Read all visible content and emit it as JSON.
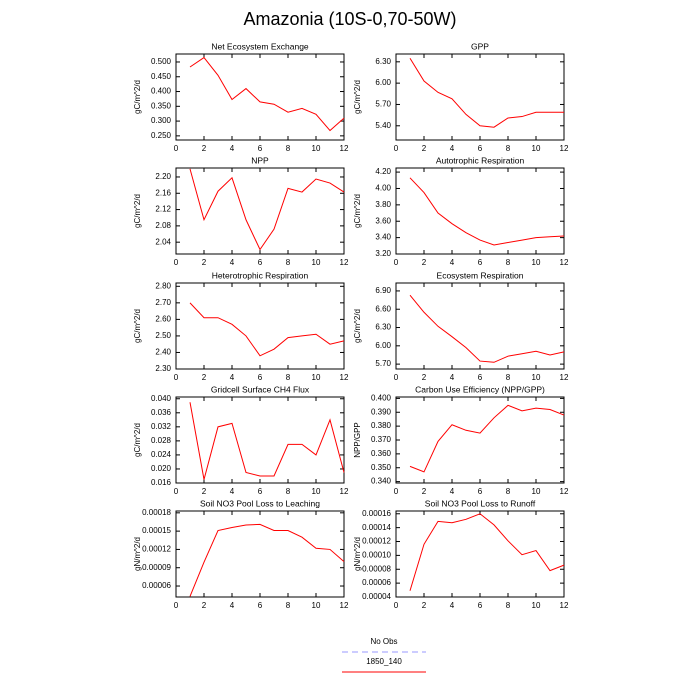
{
  "title": "Amazonia (10S-0,70-50W)",
  "legend": [
    {
      "name": "No Obs",
      "color": "#9999ff"
    },
    {
      "name": "1850_140",
      "color": "#ff0000"
    }
  ],
  "chart_data": [
    {
      "type": "line",
      "title": "Net Ecosystem Exchange",
      "y_label": "gC/m^2/d",
      "color": "#ff0000",
      "x": [
        1,
        2,
        3,
        4,
        5,
        6,
        7,
        8,
        9,
        10,
        11,
        12
      ],
      "values": [
        0.483,
        0.515,
        0.455,
        0.373,
        0.41,
        0.365,
        0.357,
        0.33,
        0.343,
        0.323,
        0.268,
        0.31
      ],
      "xlim": [
        0,
        12
      ],
      "xticks": [
        0,
        2,
        4,
        6,
        8,
        10,
        12
      ],
      "ylim": [
        0.236,
        0.527
      ],
      "yticks": [
        {
          "value": 0.25,
          "label": "0.250"
        },
        {
          "value": 0.3,
          "label": "0.300"
        },
        {
          "value": 0.35,
          "label": "0.350"
        },
        {
          "value": 0.4,
          "label": "0.400"
        },
        {
          "value": 0.45,
          "label": "0.450"
        },
        {
          "value": 0.5,
          "label": "0.500"
        }
      ]
    },
    {
      "type": "line",
      "title": "GPP",
      "y_label": "gC/m^2/d",
      "color": "#ff0000",
      "x": [
        1,
        2,
        3,
        4,
        5,
        6,
        7,
        8,
        9,
        10,
        11,
        12
      ],
      "values": [
        6.35,
        6.03,
        5.87,
        5.78,
        5.56,
        5.4,
        5.38,
        5.51,
        5.53,
        5.59,
        5.59,
        5.59
      ],
      "xlim": [
        0,
        12
      ],
      "xticks": [
        0,
        2,
        4,
        6,
        8,
        10,
        12
      ],
      "ylim": [
        5.2,
        6.41
      ],
      "yticks": [
        {
          "value": 5.4,
          "label": "5.40"
        },
        {
          "value": 5.7,
          "label": "5.70"
        },
        {
          "value": 6,
          "label": "6.00"
        },
        {
          "value": 6.3,
          "label": "6.30"
        }
      ]
    },
    {
      "type": "line",
      "title": "NPP",
      "y_label": "gC/m^2/d",
      "color": "#ff0000",
      "x": [
        1,
        2,
        3,
        4,
        5,
        6,
        7,
        8,
        9,
        10,
        11,
        12
      ],
      "values": [
        2.22,
        2.095,
        2.165,
        2.198,
        2.095,
        2.022,
        2.072,
        2.172,
        2.163,
        2.195,
        2.185,
        2.163
      ],
      "xlim": [
        0,
        12
      ],
      "xticks": [
        0,
        2,
        4,
        6,
        8,
        10,
        12
      ],
      "ylim": [
        2.011,
        2.222
      ],
      "yticks": [
        2.04,
        2.08,
        2.12,
        2.16,
        {
          "value": 2.2,
          "label": "2.20"
        }
      ]
    },
    {
      "type": "line",
      "title": "Autotrophic Respiration",
      "y_label": "gC/m^2/d",
      "color": "#ff0000",
      "x": [
        1,
        2,
        3,
        4,
        5,
        6,
        7,
        8,
        9,
        10,
        11,
        12
      ],
      "values": [
        4.13,
        3.95,
        3.7,
        3.57,
        3.46,
        3.37,
        3.31,
        3.34,
        3.37,
        3.4,
        3.41,
        3.42
      ],
      "xlim": [
        0,
        12
      ],
      "xticks": [
        0,
        2,
        4,
        6,
        8,
        10,
        12
      ],
      "ylim": [
        3.2,
        4.25
      ],
      "yticks": [
        {
          "value": 3.2,
          "label": "3.20"
        },
        {
          "value": 3.4,
          "label": "3.40"
        },
        {
          "value": 3.6,
          "label": "3.60"
        },
        {
          "value": 3.8,
          "label": "3.80"
        },
        {
          "value": 4,
          "label": "4.00"
        },
        {
          "value": 4.2,
          "label": "4.20"
        }
      ]
    },
    {
      "type": "line",
      "title": "Heterotrophic Respiration",
      "y_label": "gC/m^2/d",
      "color": "#ff0000",
      "x": [
        1,
        2,
        3,
        4,
        5,
        6,
        7,
        8,
        9,
        10,
        11,
        12
      ],
      "values": [
        2.7,
        2.61,
        2.61,
        2.57,
        2.5,
        2.38,
        2.42,
        2.49,
        2.5,
        2.51,
        2.45,
        2.47
      ],
      "xlim": [
        0,
        12
      ],
      "xticks": [
        0,
        2,
        4,
        6,
        8,
        10,
        12
      ],
      "ylim": [
        2.3,
        2.82
      ],
      "yticks": [
        {
          "value": 2.3,
          "label": "2.30"
        },
        {
          "value": 2.4,
          "label": "2.40"
        },
        {
          "value": 2.5,
          "label": "2.50"
        },
        {
          "value": 2.6,
          "label": "2.60"
        },
        {
          "value": 2.7,
          "label": "2.70"
        },
        {
          "value": 2.8,
          "label": "2.80"
        }
      ]
    },
    {
      "type": "line",
      "title": "Ecosystem Respiration",
      "y_label": "gC/m^2/d",
      "color": "#ff0000",
      "x": [
        1,
        2,
        3,
        4,
        5,
        6,
        7,
        8,
        9,
        10,
        11,
        12
      ],
      "values": [
        6.83,
        6.55,
        6.32,
        6.15,
        5.97,
        5.75,
        5.73,
        5.83,
        5.87,
        5.91,
        5.85,
        5.9
      ],
      "xlim": [
        0,
        12
      ],
      "xticks": [
        0,
        2,
        4,
        6,
        8,
        10,
        12
      ],
      "ylim": [
        5.62,
        7.03
      ],
      "yticks": [
        {
          "value": 5.7,
          "label": "5.70"
        },
        {
          "value": 6,
          "label": "6.00"
        },
        {
          "value": 6.3,
          "label": "6.30"
        },
        {
          "value": 6.6,
          "label": "6.60"
        },
        {
          "value": 6.9,
          "label": "6.90"
        }
      ]
    },
    {
      "type": "line",
      "title": "Gridcell Surface CH4 Flux",
      "y_label": "gC/m^2/d",
      "color": "#ff0000",
      "x": [
        1,
        2,
        3,
        4,
        5,
        6,
        7,
        8,
        9,
        10,
        11,
        12
      ],
      "values": [
        0.039,
        0.017,
        0.032,
        0.033,
        0.019,
        0.018,
        0.018,
        0.027,
        0.027,
        0.024,
        0.034,
        0.019
      ],
      "xlim": [
        0,
        12
      ],
      "xticks": [
        0,
        2,
        4,
        6,
        8,
        10,
        12
      ],
      "ylim": [
        0.016,
        0.0405
      ],
      "yticks": [
        0.016,
        {
          "value": 0.02,
          "label": "0.020"
        },
        0.024,
        0.028,
        0.032,
        0.036,
        {
          "value": 0.04,
          "label": "0.040"
        }
      ]
    },
    {
      "type": "line",
      "title": "Carbon Use Efficiency (NPP/GPP)",
      "y_label": "NPP/GPP",
      "color": "#ff0000",
      "x": [
        1,
        2,
        3,
        4,
        5,
        6,
        7,
        8,
        9,
        10,
        11,
        12
      ],
      "values": [
        0.351,
        0.347,
        0.369,
        0.381,
        0.377,
        0.375,
        0.386,
        0.395,
        0.391,
        0.393,
        0.392,
        0.388
      ],
      "xlim": [
        0,
        12
      ],
      "xticks": [
        0,
        2,
        4,
        6,
        8,
        10,
        12
      ],
      "ylim": [
        0.339,
        0.401
      ],
      "yticks": [
        {
          "value": 0.34,
          "label": "0.340"
        },
        {
          "value": 0.35,
          "label": "0.350"
        },
        {
          "value": 0.36,
          "label": "0.360"
        },
        {
          "value": 0.37,
          "label": "0.370"
        },
        {
          "value": 0.38,
          "label": "0.380"
        },
        {
          "value": 0.39,
          "label": "0.390"
        },
        {
          "value": 0.4,
          "label": "0.400"
        }
      ]
    },
    {
      "type": "line",
      "title": "Soil NO3 Pool Loss to Leaching",
      "y_label": "gN/m^2/d",
      "color": "#ff0000",
      "x": [
        1,
        2,
        3,
        4,
        5,
        6,
        7,
        8,
        9,
        10,
        11,
        12
      ],
      "values": [
        4.3e-05,
        9.9e-05,
        0.000151,
        0.000156,
        0.00016,
        0.000161,
        0.000151,
        0.000151,
        0.00014,
        0.000122,
        0.00012,
        0.0001
      ],
      "xlim": [
        0,
        12
      ],
      "xticks": [
        0,
        2,
        4,
        6,
        8,
        10,
        12
      ],
      "ylim": [
        4.2e-05,
        0.000183
      ],
      "yticks": [
        6e-05,
        9e-05,
        {
          "value": 0.00012,
          "label": "0.00012"
        },
        0.00015,
        0.00018
      ]
    },
    {
      "type": "line",
      "title": "Soil NO3 Pool Loss to Runoff",
      "y_label": "gN/m^2/d",
      "color": "#ff0000",
      "x": [
        1,
        2,
        3,
        4,
        5,
        6,
        7,
        8,
        9,
        10,
        11,
        12
      ],
      "values": [
        4.9e-05,
        0.000116,
        0.000149,
        0.000147,
        0.000152,
        0.00016,
        0.000144,
        0.000121,
        0.000101,
        0.000107,
        7.8e-05,
        8.6e-05
      ],
      "xlim": [
        0,
        12
      ],
      "xticks": [
        0,
        2,
        4,
        6,
        8,
        10,
        12
      ],
      "ylim": [
        4e-05,
        0.000164
      ],
      "yticks": [
        {
          "value": 4e-05,
          "label": "0.00004"
        },
        {
          "value": 6e-05,
          "label": "0.00006"
        },
        {
          "value": 8e-05,
          "label": "0.00008"
        },
        {
          "value": 0.0001,
          "label": "0.00010"
        },
        {
          "value": 0.00012,
          "label": "0.00012"
        },
        {
          "value": 0.00014,
          "label": "0.00014"
        },
        {
          "value": 0.00016,
          "label": "0.00016"
        }
      ]
    }
  ]
}
